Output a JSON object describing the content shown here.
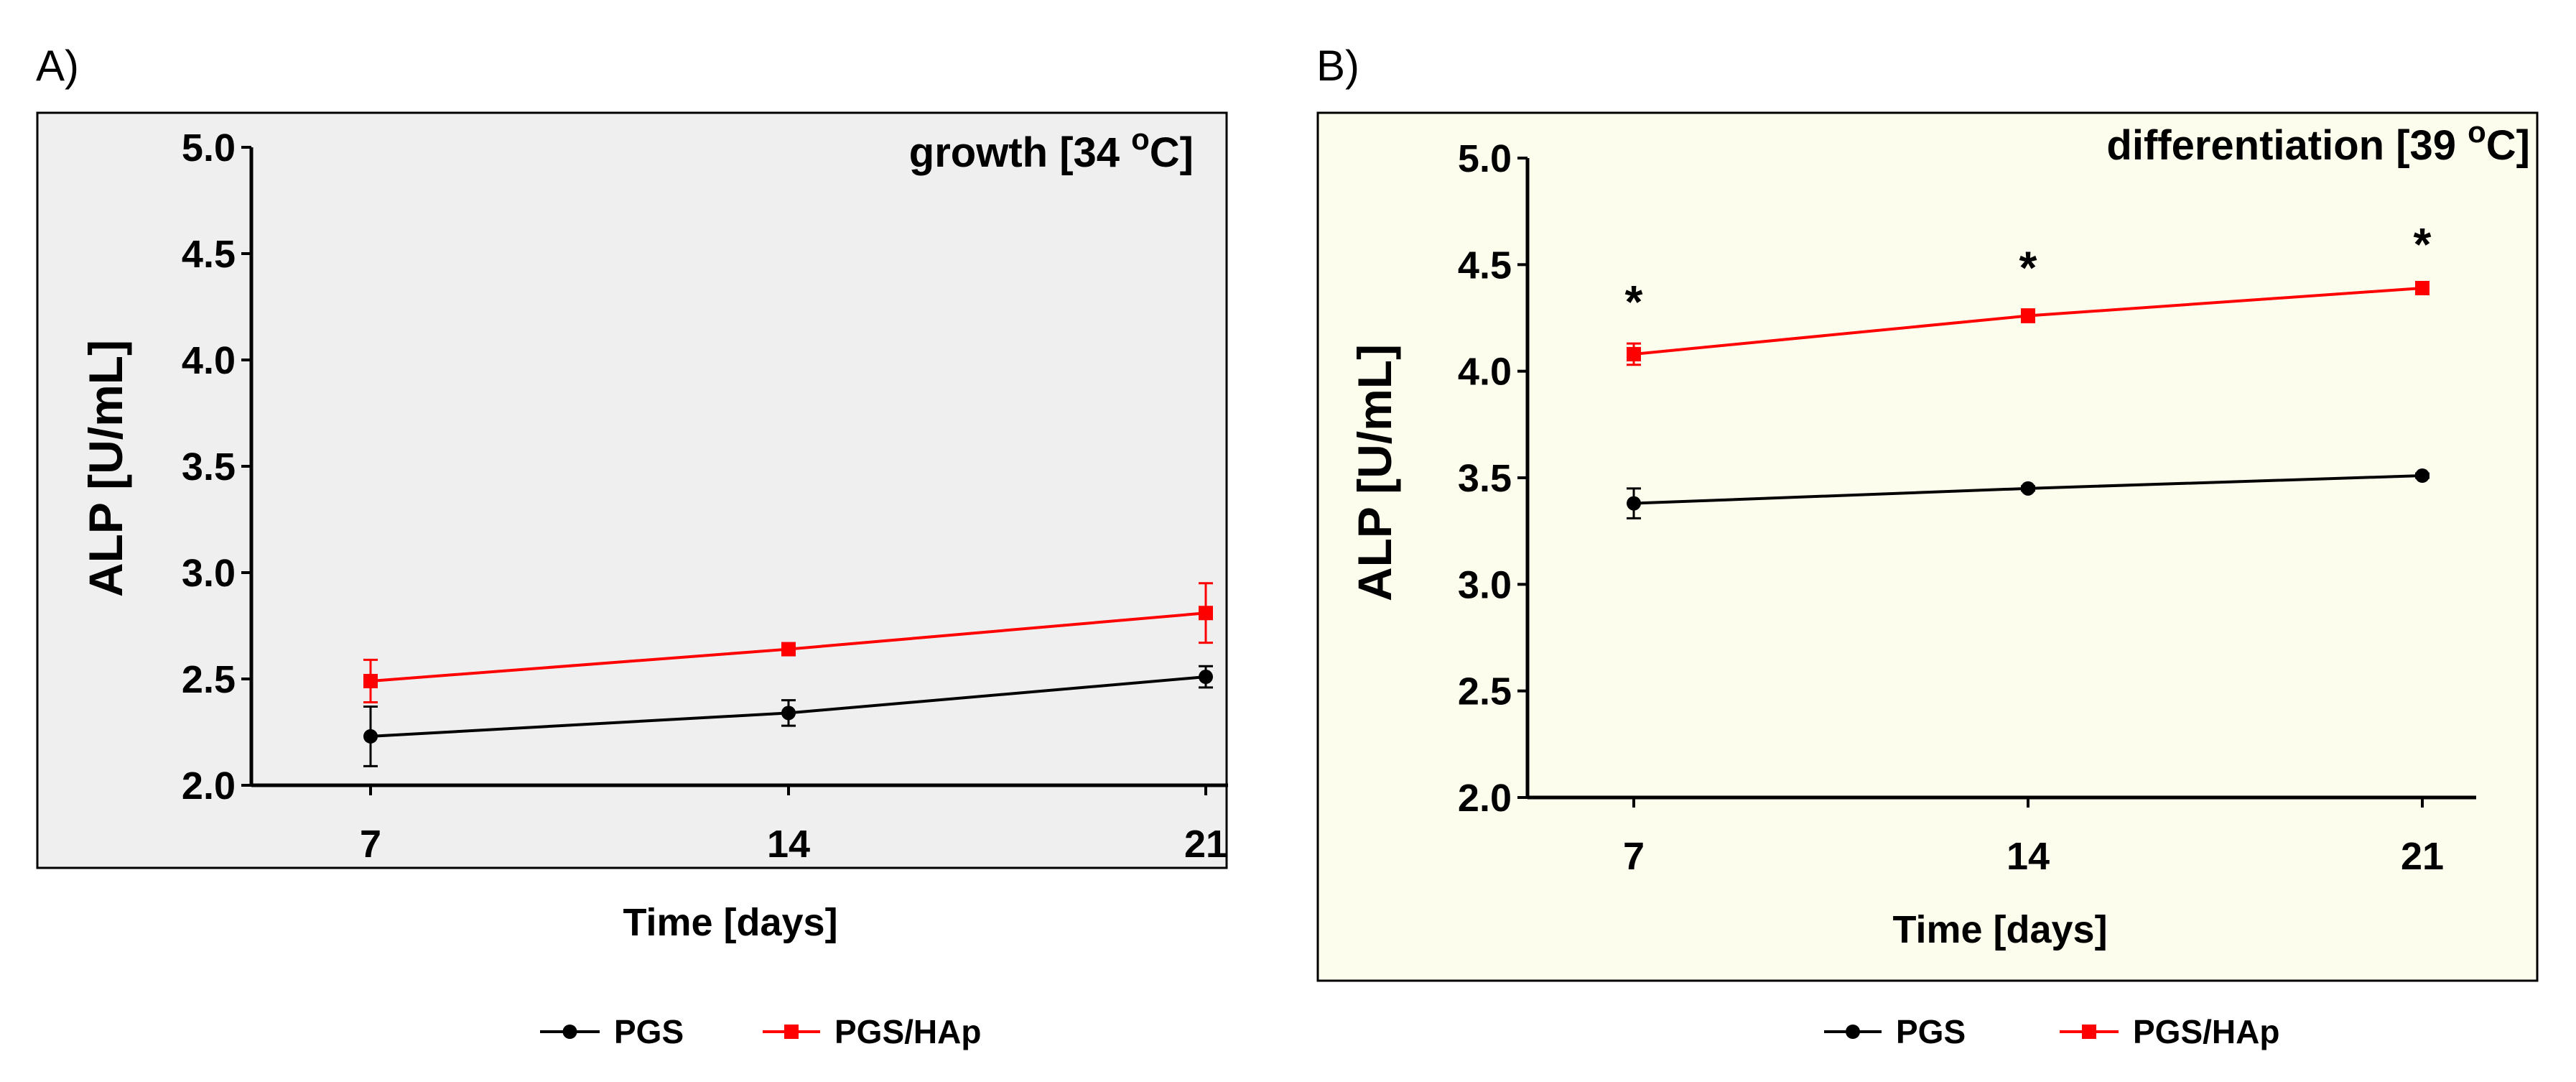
{
  "chart_data": [
    {
      "panel_label": "A)",
      "type": "line",
      "title": "growth [34 °C]",
      "title_main": "growth [34 ",
      "title_sup": "o",
      "title_end": "C]",
      "background": "#efefef",
      "xlabel": "Time [days]",
      "ylabel": "ALP [U/mL]",
      "x": [
        7,
        14,
        21
      ],
      "xticks": [
        "7",
        "14",
        "21"
      ],
      "ylim": [
        2.0,
        5.0
      ],
      "yticks": [
        "2.0",
        "2.5",
        "3.0",
        "3.5",
        "4.0",
        "4.5",
        "5.0"
      ],
      "series": [
        {
          "name": "PGS",
          "color": "#000000",
          "marker": "circle",
          "values": [
            2.23,
            2.34,
            2.51
          ],
          "errors": [
            0.14,
            0.06,
            0.05
          ]
        },
        {
          "name": "PGS/HAp",
          "color": "#ff0000",
          "marker": "square",
          "values": [
            2.49,
            2.64,
            2.81
          ],
          "errors": [
            0.1,
            0.02,
            0.14
          ]
        }
      ],
      "annotations": [],
      "legend": {
        "placement": "bottom",
        "items": [
          "PGS",
          "PGS/HAp"
        ]
      }
    },
    {
      "panel_label": "B)",
      "type": "line",
      "title": "differentiation [39 °C]",
      "title_main": "differentiation [39 ",
      "title_sup": "o",
      "title_end": "C]",
      "background": "#fdfdee",
      "xlabel": "Time [days]",
      "ylabel": "ALP [U/mL]",
      "x": [
        7,
        14,
        21
      ],
      "xticks": [
        "7",
        "14",
        "21"
      ],
      "ylim": [
        2.0,
        5.0
      ],
      "yticks": [
        "2.0",
        "2.5",
        "3.0",
        "3.5",
        "4.0",
        "4.5",
        "5.0"
      ],
      "series": [
        {
          "name": "PGS",
          "color": "#000000",
          "marker": "circle",
          "values": [
            3.38,
            3.45,
            3.51
          ],
          "errors": [
            0.07,
            0.01,
            0.01
          ]
        },
        {
          "name": "PGS/HAp",
          "color": "#ff0000",
          "marker": "square",
          "values": [
            4.08,
            4.26,
            4.39
          ],
          "errors": [
            0.05,
            0.03,
            0.01
          ]
        }
      ],
      "annotations": [
        {
          "x": 7,
          "text": "*"
        },
        {
          "x": 14,
          "text": "*"
        },
        {
          "x": 21,
          "text": "*"
        }
      ],
      "legend": {
        "placement": "bottom",
        "items": [
          "PGS",
          "PGS/HAp"
        ]
      }
    }
  ]
}
